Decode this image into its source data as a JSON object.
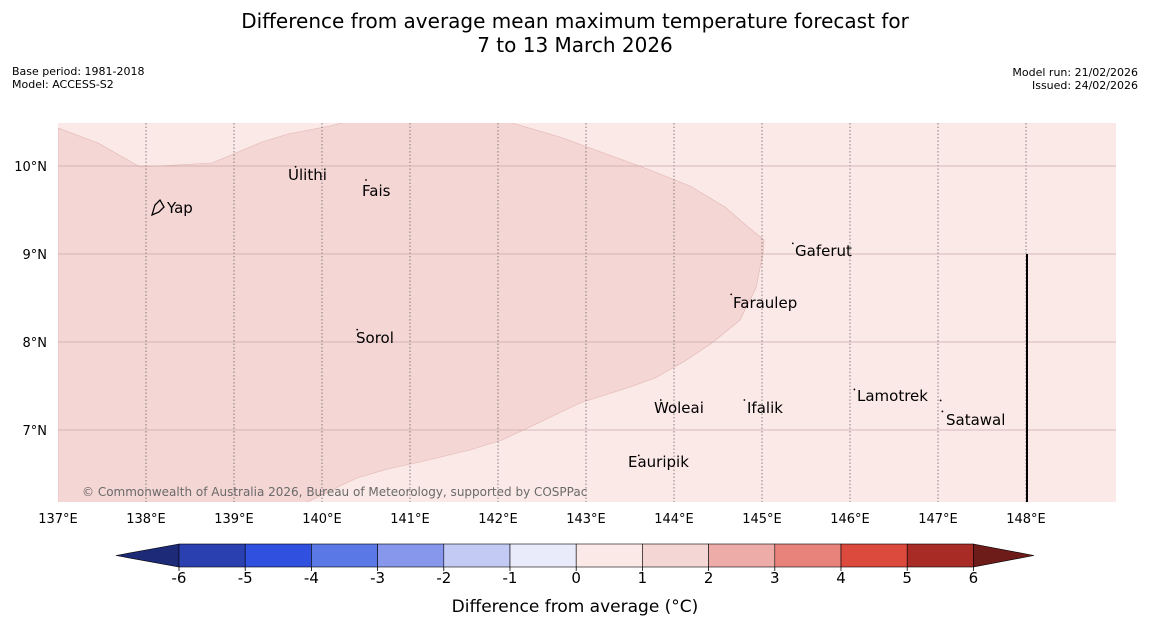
{
  "title": {
    "line1": "Difference from average mean maximum temperature forecast for",
    "line2": "7 to 13 March 2026"
  },
  "meta_left": {
    "base_period": "Base period: 1981-2018",
    "model": "Model: ACCESS-S2"
  },
  "meta_right": {
    "model_run": "Model run: 21/02/2026",
    "issued": "Issued: 24/02/2026"
  },
  "map": {
    "lon_ticks": [
      "137°E",
      "138°E",
      "139°E",
      "140°E",
      "141°E",
      "142°E",
      "143°E",
      "144°E",
      "145°E",
      "146°E",
      "147°E",
      "148°E"
    ],
    "lat_ticks": [
      "10°N",
      "9°N",
      "8°N",
      "7°N"
    ],
    "background_color": "#fbe9e8",
    "region_color": "#f4d6d4",
    "places": [
      {
        "name": "Yap",
        "lon": 138.22,
        "lat": 9.52
      },
      {
        "name": "Ulithi",
        "lon": 139.7,
        "lat": 9.9
      },
      {
        "name": "Fais",
        "lon": 140.5,
        "lat": 9.75
      },
      {
        "name": "Gaferut",
        "lon": 145.35,
        "lat": 9.03
      },
      {
        "name": "Faraulep",
        "lon": 144.65,
        "lat": 8.45
      },
      {
        "name": "Sorol",
        "lon": 140.4,
        "lat": 8.05
      },
      {
        "name": "Lamotrek",
        "lon": 146.05,
        "lat": 7.37
      },
      {
        "name": "Woleai",
        "lon": 143.85,
        "lat": 7.25
      },
      {
        "name": "Ifalik",
        "lon": 144.8,
        "lat": 7.25
      },
      {
        "name": "Satawal",
        "lon": 147.05,
        "lat": 7.12
      },
      {
        "name": "Eauripik",
        "lon": 143.6,
        "lat": 6.62
      }
    ],
    "copyright": "© Commonwealth of Australia 2026, Bureau of Meteorology, supported by COSPPac"
  },
  "colorbar": {
    "label": "Difference from average (°C)",
    "ticks": [
      "-6",
      "-5",
      "-4",
      "-3",
      "-2",
      "-1",
      "0",
      "1",
      "2",
      "3",
      "4",
      "5",
      "6"
    ],
    "colors": [
      "#2a3fb0",
      "#3050e0",
      "#5a78e6",
      "#8798ec",
      "#c3caf4",
      "#e9ebfb",
      "#fbe9e8",
      "#f4d6d4",
      "#eeaca8",
      "#e8837c",
      "#dc4a3d",
      "#a82b26"
    ],
    "under_color": "#1c2a78",
    "over_color": "#6e1c1a"
  }
}
